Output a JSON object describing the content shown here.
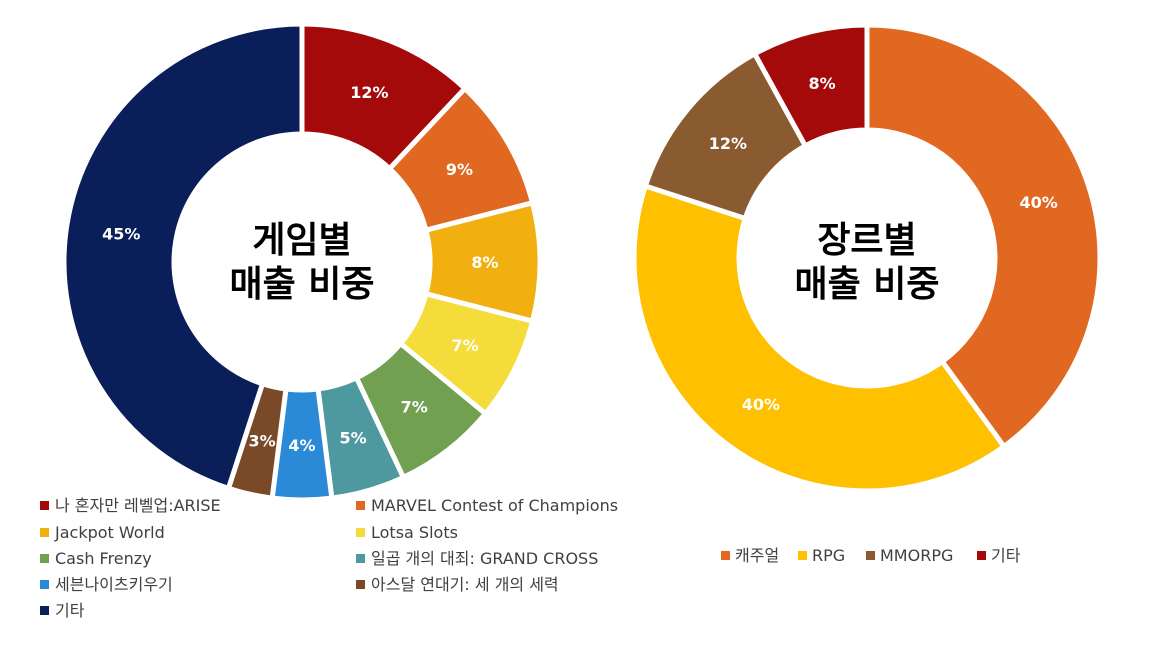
{
  "chart_data": [
    {
      "type": "pie",
      "title_lines": [
        "게임별",
        "매출 비중"
      ],
      "slices": [
        {
          "label": "나 혼자만 레벨업:ARISE",
          "value": 12,
          "display": "12%",
          "color": "#A50A0A"
        },
        {
          "label": "MARVEL Contest of Champions",
          "value": 9,
          "display": "9%",
          "color": "#E06820"
        },
        {
          "label": "Jackpot World",
          "value": 8,
          "display": "8%",
          "color": "#F2B010"
        },
        {
          "label": "Lotsa Slots",
          "value": 7,
          "display": "7%",
          "color": "#F4DC3A"
        },
        {
          "label": "Cash Frenzy",
          "value": 7,
          "display": "7%",
          "color": "#70A050"
        },
        {
          "label": "일곱 개의 대죄: GRAND CROSS",
          "value": 5,
          "display": "5%",
          "color": "#4E98A0"
        },
        {
          "label": "세븐나이츠키우기",
          "value": 4,
          "display": "4%",
          "color": "#2A8AD8"
        },
        {
          "label": "아스달 연대기: 세 개의 세력",
          "value": 3,
          "display": "3%",
          "color": "#7A4A28"
        },
        {
          "label": "기타",
          "value": 45,
          "display": "45%",
          "color": "#0A1F5A"
        }
      ],
      "legend_placement": "bottom"
    },
    {
      "type": "pie",
      "title_lines": [
        "장르별",
        "매출 비중"
      ],
      "slices": [
        {
          "label": "캐주얼",
          "value": 40,
          "display": "40%",
          "color": "#E06820"
        },
        {
          "label": "RPG",
          "value": 40,
          "display": "40%",
          "color": "#FFC000"
        },
        {
          "label": "MMORPG",
          "value": 12,
          "display": "12%",
          "color": "#8A5A30"
        },
        {
          "label": "기타",
          "value": 8,
          "display": "8%",
          "color": "#A50A0A"
        }
      ],
      "legend_placement": "bottom"
    }
  ]
}
